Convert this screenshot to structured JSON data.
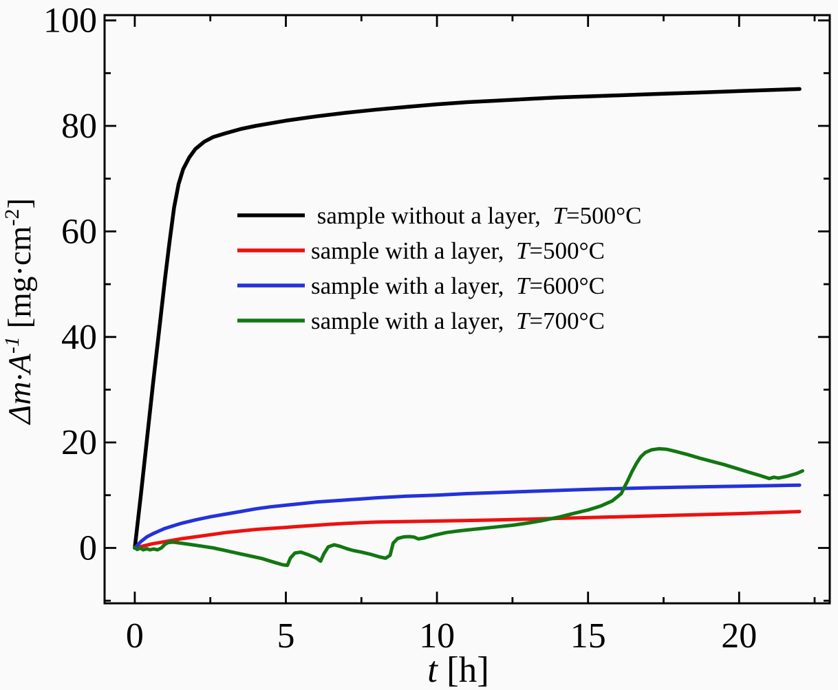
{
  "figure": {
    "background": "#fafafa",
    "frame_color": "#000000"
  },
  "chart_data": {
    "type": "line",
    "title": "",
    "xlabel": {
      "variable": "t",
      "unit": "[h]"
    },
    "ylabel": {
      "variable": "Δm·A",
      "variable_exponent": "-1",
      "unit_open": "[mg·cm",
      "unit_exponent": "-2",
      "unit_close": "]"
    },
    "xlim": [
      -1,
      23
    ],
    "ylim": [
      -10.5,
      101
    ],
    "xticks": [
      0,
      5,
      10,
      15,
      20
    ],
    "xticks_minor": [
      2.5,
      7.5,
      12.5,
      17.5,
      22.5
    ],
    "yticks": [
      0,
      20,
      40,
      60,
      80,
      100
    ],
    "yticks_minor": [
      -10,
      10,
      30,
      50,
      70,
      90
    ],
    "grid": false,
    "frame": "box-with-inward-ticks",
    "legend_position": "inside-upper-center-left",
    "series": [
      {
        "id": "sample-without-layer-500C",
        "label": " sample without a layer,",
        "temp_symbol": "T",
        "temp_rest": "=500°C",
        "color": "#000000",
        "points": [
          [
            0,
            0
          ],
          [
            0.2,
            10
          ],
          [
            0.4,
            20.5
          ],
          [
            0.6,
            31
          ],
          [
            0.8,
            41
          ],
          [
            1,
            51
          ],
          [
            1.15,
            58
          ],
          [
            1.3,
            64.5
          ],
          [
            1.45,
            69
          ],
          [
            1.6,
            71.8
          ],
          [
            1.8,
            74
          ],
          [
            2,
            75.6
          ],
          [
            2.3,
            77
          ],
          [
            2.6,
            77.9
          ],
          [
            3,
            78.6
          ],
          [
            3.5,
            79.4
          ],
          [
            4,
            80
          ],
          [
            4.5,
            80.5
          ],
          [
            5,
            81
          ],
          [
            6,
            81.8
          ],
          [
            7,
            82.5
          ],
          [
            8,
            83.1
          ],
          [
            9,
            83.6
          ],
          [
            10,
            84.1
          ],
          [
            11,
            84.5
          ],
          [
            12,
            84.8
          ],
          [
            13,
            85.1
          ],
          [
            14,
            85.4
          ],
          [
            15,
            85.6
          ],
          [
            16,
            85.8
          ],
          [
            17,
            86
          ],
          [
            18,
            86.2
          ],
          [
            19,
            86.4
          ],
          [
            20,
            86.6
          ],
          [
            21,
            86.8
          ],
          [
            22,
            87
          ]
        ]
      },
      {
        "id": "sample-with-layer-500C",
        "label": "sample with a layer,",
        "temp_symbol": "T",
        "temp_rest": "=500°C",
        "color": "#ee1010",
        "points": [
          [
            0,
            0
          ],
          [
            0.3,
            0.4
          ],
          [
            0.6,
            0.8
          ],
          [
            1,
            1.2
          ],
          [
            1.5,
            1.7
          ],
          [
            2,
            2.1
          ],
          [
            2.5,
            2.5
          ],
          [
            3,
            2.9
          ],
          [
            3.5,
            3.2
          ],
          [
            4,
            3.5
          ],
          [
            4.5,
            3.7
          ],
          [
            5,
            3.9
          ],
          [
            5.5,
            4.1
          ],
          [
            6,
            4.3
          ],
          [
            6.5,
            4.5
          ],
          [
            7,
            4.65
          ],
          [
            7.5,
            4.8
          ],
          [
            8,
            4.9
          ],
          [
            9,
            5
          ],
          [
            10,
            5.1
          ],
          [
            11,
            5.2
          ],
          [
            12,
            5.3
          ],
          [
            13,
            5.45
          ],
          [
            14,
            5.6
          ],
          [
            15,
            5.75
          ],
          [
            16,
            5.9
          ],
          [
            17,
            6.05
          ],
          [
            18,
            6.2
          ],
          [
            19,
            6.35
          ],
          [
            20,
            6.5
          ],
          [
            21,
            6.7
          ],
          [
            22,
            6.9
          ]
        ]
      },
      {
        "id": "sample-with-layer-600C",
        "label": "sample with a layer,",
        "temp_symbol": "T",
        "temp_rest": "=600°C",
        "color": "#2332dc",
        "points": [
          [
            0,
            0
          ],
          [
            0.2,
            1.2
          ],
          [
            0.4,
            2.1
          ],
          [
            0.6,
            2.7
          ],
          [
            0.8,
            3.2
          ],
          [
            1,
            3.7
          ],
          [
            1.5,
            4.6
          ],
          [
            2,
            5.3
          ],
          [
            2.5,
            5.9
          ],
          [
            3,
            6.4
          ],
          [
            3.5,
            6.9
          ],
          [
            4,
            7.4
          ],
          [
            4.5,
            7.8
          ],
          [
            5,
            8.1
          ],
          [
            5.5,
            8.4
          ],
          [
            6,
            8.7
          ],
          [
            6.5,
            8.9
          ],
          [
            7,
            9.1
          ],
          [
            7.5,
            9.3
          ],
          [
            8,
            9.5
          ],
          [
            9,
            9.8
          ],
          [
            10,
            10
          ],
          [
            11,
            10.3
          ],
          [
            12,
            10.5
          ],
          [
            13,
            10.7
          ],
          [
            14,
            10.9
          ],
          [
            15,
            11.1
          ],
          [
            16,
            11.25
          ],
          [
            17,
            11.4
          ],
          [
            18,
            11.5
          ],
          [
            19,
            11.6
          ],
          [
            20,
            11.7
          ],
          [
            21,
            11.8
          ],
          [
            22,
            11.9
          ]
        ]
      },
      {
        "id": "sample-with-layer-700C",
        "label": "sample with a layer,",
        "temp_symbol": "T",
        "temp_rest": "=700°C",
        "color": "#127712",
        "points": [
          [
            0,
            0.1
          ],
          [
            0.08,
            -0.3
          ],
          [
            0.18,
            0
          ],
          [
            0.28,
            -0.35
          ],
          [
            0.4,
            -0.15
          ],
          [
            0.5,
            -0.35
          ],
          [
            0.62,
            -0.2
          ],
          [
            0.75,
            -0.35
          ],
          [
            0.88,
            0
          ],
          [
            1,
            0.7
          ],
          [
            1.1,
            1
          ],
          [
            1.25,
            1.1
          ],
          [
            1.4,
            1
          ],
          [
            1.6,
            0.85
          ],
          [
            1.9,
            0.6
          ],
          [
            2.2,
            0.35
          ],
          [
            2.6,
            0
          ],
          [
            3,
            -0.5
          ],
          [
            3.4,
            -1
          ],
          [
            3.8,
            -1.5
          ],
          [
            4.2,
            -2
          ],
          [
            4.6,
            -2.7
          ],
          [
            4.9,
            -3.2
          ],
          [
            5.05,
            -3.3
          ],
          [
            5.15,
            -1.9
          ],
          [
            5.3,
            -0.95
          ],
          [
            5.5,
            -0.8
          ],
          [
            5.75,
            -1.3
          ],
          [
            6,
            -1.9
          ],
          [
            6.15,
            -2.5
          ],
          [
            6.25,
            -1.2
          ],
          [
            6.4,
            0.2
          ],
          [
            6.6,
            0.6
          ],
          [
            6.8,
            0.3
          ],
          [
            7,
            -0.1
          ],
          [
            7.2,
            -0.45
          ],
          [
            7.5,
            -0.8
          ],
          [
            7.8,
            -1.2
          ],
          [
            8.1,
            -1.7
          ],
          [
            8.3,
            -1.95
          ],
          [
            8.45,
            -1.4
          ],
          [
            8.55,
            0.9
          ],
          [
            8.7,
            1.8
          ],
          [
            8.9,
            2.1
          ],
          [
            9.1,
            2.15
          ],
          [
            9.25,
            2.05
          ],
          [
            9.38,
            1.7
          ],
          [
            9.55,
            1.85
          ],
          [
            9.9,
            2.4
          ],
          [
            10.3,
            2.9
          ],
          [
            10.7,
            3.2
          ],
          [
            11,
            3.4
          ],
          [
            11.5,
            3.7
          ],
          [
            12,
            4
          ],
          [
            12.5,
            4.3
          ],
          [
            13,
            4.7
          ],
          [
            13.5,
            5.2
          ],
          [
            14,
            5.8
          ],
          [
            14.5,
            6.5
          ],
          [
            15,
            7.2
          ],
          [
            15.4,
            7.9
          ],
          [
            15.8,
            8.9
          ],
          [
            16.1,
            10.3
          ],
          [
            16.2,
            11.5
          ],
          [
            16.3,
            12.6
          ],
          [
            16.45,
            14.4
          ],
          [
            16.6,
            16
          ],
          [
            16.75,
            17.3
          ],
          [
            16.9,
            18.1
          ],
          [
            17.1,
            18.6
          ],
          [
            17.35,
            18.8
          ],
          [
            17.6,
            18.7
          ],
          [
            17.9,
            18.3
          ],
          [
            18.3,
            17.7
          ],
          [
            18.7,
            17
          ],
          [
            19.1,
            16.4
          ],
          [
            19.5,
            15.8
          ],
          [
            19.9,
            15.1
          ],
          [
            20.3,
            14.4
          ],
          [
            20.7,
            13.7
          ],
          [
            21,
            13.15
          ],
          [
            21.15,
            13.4
          ],
          [
            21.3,
            13.25
          ],
          [
            21.6,
            13.6
          ],
          [
            21.9,
            14.1
          ],
          [
            22.1,
            14.6
          ]
        ]
      }
    ]
  }
}
